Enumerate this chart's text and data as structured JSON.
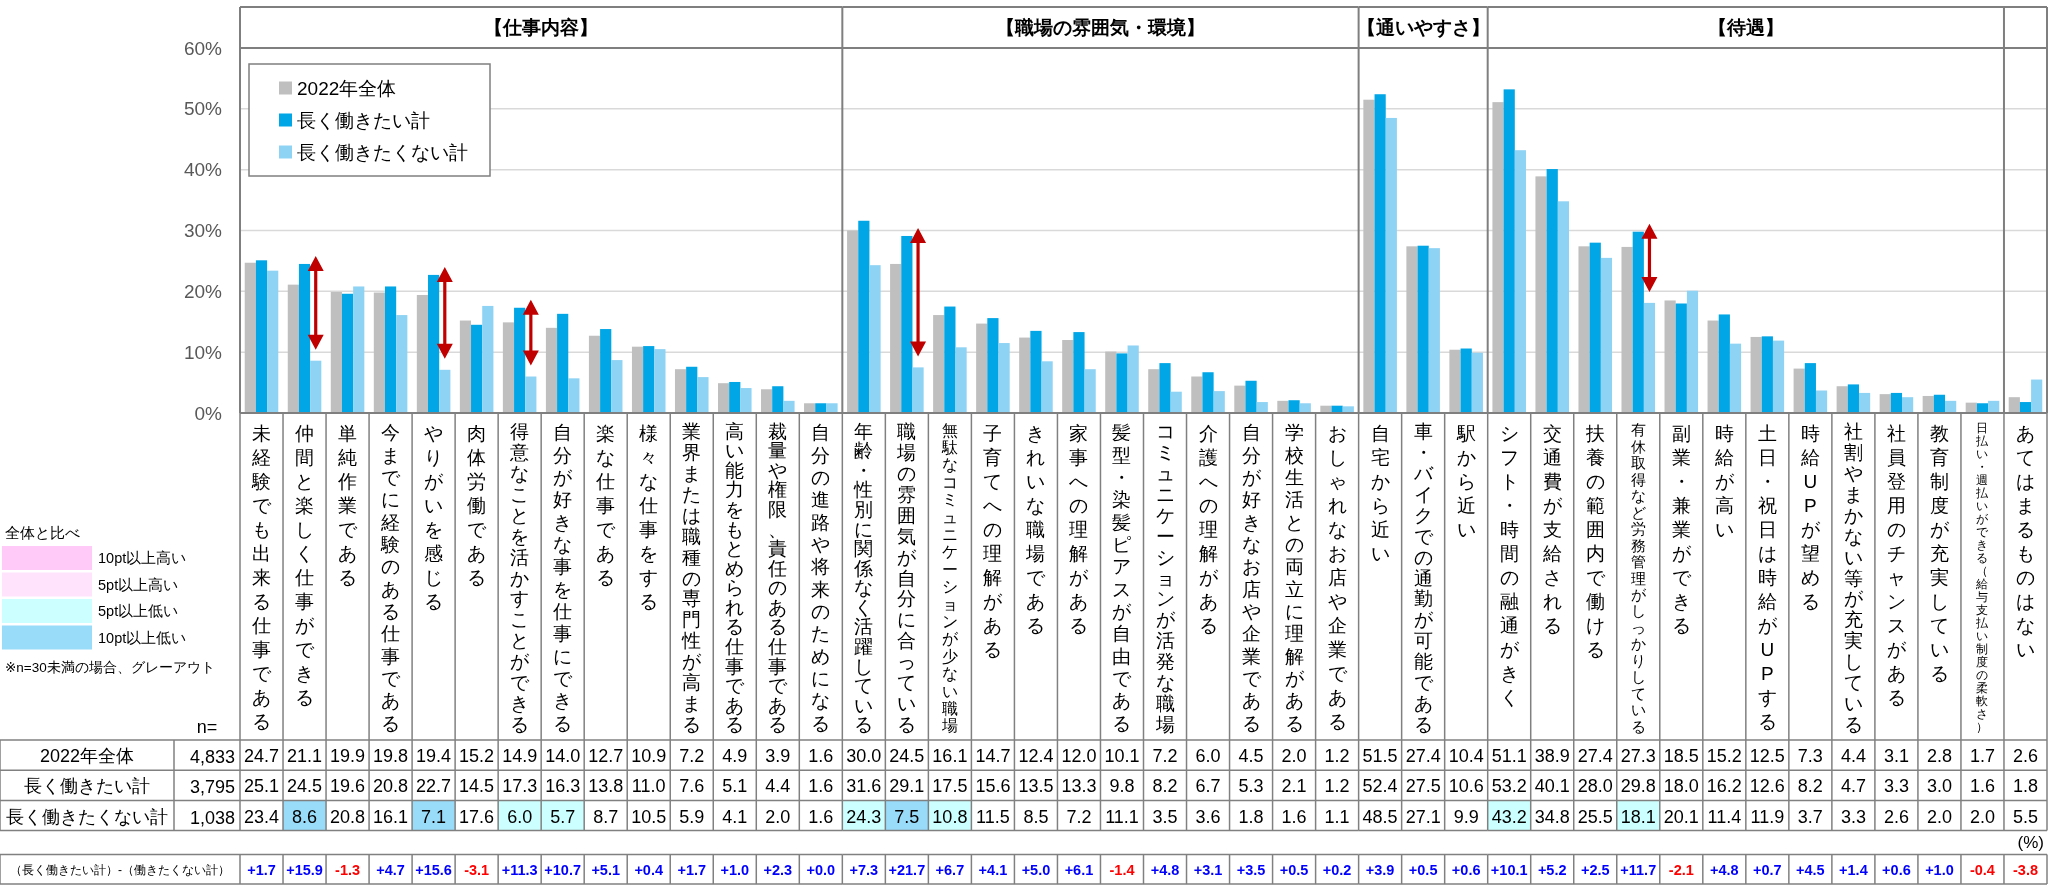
{
  "chart_data": [
    {
      "type": "bar",
      "title": "【仕事内容】",
      "categories": [
        "未経験でも出来る仕事である",
        "仲間と楽しく仕事ができる",
        "単純作業である",
        "今までに経験のある仕事である",
        "やりがいを感じる",
        "肉体労働である",
        "得意なことを活かすことができる",
        "自分が好きな事を仕事にできる",
        "楽な仕事である",
        "様々な仕事をする",
        "業界または職種の専門性が高まる",
        "高い能力をもとめられる仕事である",
        "裁量や権限、責任のある仕事である",
        "自分の進路や将来のためになる"
      ],
      "series": [
        {
          "name": "2022年全体",
          "color": "#bfbfbf",
          "values": [
            24.7,
            21.1,
            19.9,
            19.8,
            19.4,
            15.2,
            14.9,
            14.0,
            12.7,
            10.9,
            7.2,
            4.9,
            3.9,
            1.6
          ],
          "value_labels": [
            "24.7",
            "21.1",
            "19.9",
            "19.8",
            "19.4",
            "15.2",
            "14.9",
            "14.0",
            "12.7",
            "10.9",
            "7.2",
            "4.9",
            "3.9",
            "1.6"
          ]
        },
        {
          "name": "長く働きたい計",
          "color": "#00a6e6",
          "values": [
            25.1,
            24.5,
            19.6,
            20.8,
            22.7,
            14.5,
            17.3,
            16.3,
            13.8,
            11.0,
            7.6,
            5.1,
            4.4,
            1.6
          ],
          "value_labels": [
            "25.1",
            "24.5",
            "19.6",
            "20.8",
            "22.7",
            "14.5",
            "17.3",
            "16.3",
            "13.8",
            "11.0",
            "7.6",
            "5.1",
            "4.4",
            "1.6"
          ]
        },
        {
          "name": "長く働きたくない計",
          "color": "#8fd3f4",
          "values": [
            23.4,
            8.6,
            20.8,
            16.1,
            7.1,
            17.6,
            6.0,
            5.7,
            8.7,
            10.5,
            5.9,
            4.1,
            2.0,
            1.6
          ],
          "value_labels": [
            "23.4",
            "8.6",
            "20.8",
            "16.1",
            "7.1",
            "17.6",
            "6.0",
            "5.7",
            "8.7",
            "10.5",
            "5.9",
            "4.1",
            "2.0",
            "1.6"
          ]
        }
      ],
      "ylim": [
        0,
        60
      ],
      "yticks": [
        {
          "value": 0,
          "label": "0%"
        },
        {
          "value": 10,
          "label": "10%"
        },
        {
          "value": 20,
          "label": "20%"
        },
        {
          "value": 30,
          "label": "30%"
        },
        {
          "value": 40,
          "label": "40%"
        },
        {
          "value": 50,
          "label": "50%"
        },
        {
          "value": 60,
          "label": "60%"
        }
      ],
      "grid": "y",
      "legend": "top left",
      "annotations": [
        "+1.7",
        "+15.9",
        "-1.3",
        "+4.7",
        "+15.6",
        "-3.1",
        "+11.3",
        "+10.7",
        "+5.1",
        "+0.4",
        "+1.7",
        "+1.0",
        "+2.3",
        "+0.0",
        "（長く働きたい計）-（働きたくない計）",
        "n=",
        "4,833",
        "3,795",
        "1,038"
      ]
    },
    {
      "type": "bar",
      "title": "【職場の雰囲気・環境】",
      "categories": [
        "年齢・性別に関係なく活躍している",
        "職場の雰囲気が自分に合っている",
        "無駄なコミュニケーションが少ない職場",
        "子育てへの理解がある",
        "きれいな職場である",
        "家事への理解がある",
        "髪型・染髪ピアスが自由である",
        "コミュニケーションが活発な職場",
        "介護への理解がある",
        "自分が好きなお店や企業である",
        "学校生活との両立に理解がある",
        "おしゃれなお店や企業である"
      ],
      "series": [
        {
          "color": "#bfbfbf",
          "values": [
            30.0,
            24.5,
            16.1,
            14.7,
            12.4,
            12.0,
            10.1,
            7.2,
            6.0,
            4.5,
            2.0,
            1.2
          ],
          "value_labels": [
            "30.0",
            "24.5",
            "16.1",
            "14.7",
            "12.4",
            "12.0",
            "10.1",
            "7.2",
            "6.0",
            "4.5",
            "2.0",
            "1.2"
          ]
        },
        {
          "color": "#00a6e6",
          "values": [
            31.6,
            29.1,
            17.5,
            15.6,
            13.5,
            13.3,
            9.8,
            8.2,
            6.7,
            5.3,
            2.1,
            1.2
          ],
          "value_labels": [
            "31.6",
            "29.1",
            "17.5",
            "15.6",
            "13.5",
            "13.3",
            "9.8",
            "8.2",
            "6.7",
            "5.3",
            "2.1",
            "1.2"
          ]
        },
        {
          "color": "#8fd3f4",
          "values": [
            24.3,
            7.5,
            10.8,
            11.5,
            8.5,
            7.2,
            11.1,
            3.5,
            3.6,
            1.8,
            1.6,
            1.1
          ],
          "value_labels": [
            "24.3",
            "7.5",
            "10.8",
            "11.5",
            "8.5",
            "7.2",
            "11.1",
            "3.5",
            "3.6",
            "1.8",
            "1.6",
            "1.1"
          ]
        }
      ],
      "ylim": [
        0,
        60
      ],
      "yticks": [
        {
          "value": 0,
          "label": null
        },
        {
          "value": 10,
          "label": null
        },
        {
          "value": 20,
          "label": null
        },
        {
          "value": 30,
          "label": null
        },
        {
          "value": 40,
          "label": null
        },
        {
          "value": 50,
          "label": null
        },
        {
          "value": 60,
          "label": null
        }
      ],
      "grid": "y",
      "tick_labels": "x",
      "annotations": [
        "+7.3",
        "+21.7",
        "+6.7",
        "+4.1",
        "+5.0",
        "+6.1",
        "-1.4",
        "+4.8",
        "+3.1",
        "+3.5",
        "+0.5",
        "+0.2"
      ]
    },
    {
      "type": "bar",
      "title": "【通いやすさ】",
      "categories": [
        "自宅から近い",
        "車・バイクでの通勤が可能である",
        "駅から近い"
      ],
      "series": [
        {
          "color": "#bfbfbf",
          "values": [
            51.5,
            27.4,
            10.4
          ],
          "value_labels": [
            "51.5",
            "27.4",
            "10.4"
          ]
        },
        {
          "color": "#00a6e6",
          "values": [
            52.4,
            27.5,
            10.6
          ],
          "value_labels": [
            "52.4",
            "27.5",
            "10.6"
          ]
        },
        {
          "color": "#8fd3f4",
          "values": [
            48.5,
            27.1,
            9.9
          ],
          "value_labels": [
            "48.5",
            "27.1",
            "9.9"
          ]
        }
      ],
      "ylim": [
        0,
        60
      ],
      "yticks": [
        {
          "value": 0,
          "label": null
        },
        {
          "value": 10,
          "label": null
        },
        {
          "value": 20,
          "label": null
        },
        {
          "value": 30,
          "label": null
        },
        {
          "value": 40,
          "label": null
        },
        {
          "value": 50,
          "label": null
        },
        {
          "value": 60,
          "label": null
        }
      ],
      "grid": "y",
      "tick_labels": "x",
      "annotations": [
        "+3.9",
        "+0.5",
        "+0.6"
      ]
    },
    {
      "type": "bar",
      "title": "【待遇】",
      "categories": [
        "シフト・時間の融通がきく",
        "交通費が支給される",
        "扶養の範囲内で働ける",
        "有休取得など労務管理がしっかりしている",
        "副業・兼業ができる",
        "時給が高い",
        "土日・祝日は時給がUPする",
        "時給UPが望める",
        "社割やまかない等が充実している",
        "社員登用のチャンスがある",
        "教育制度が充実している",
        "日払い・週払いができる（給与支払い制度の柔軟さ）"
      ],
      "series": [
        {
          "color": "#bfbfbf",
          "values": [
            51.1,
            38.9,
            27.4,
            27.3,
            18.5,
            15.2,
            12.5,
            7.3,
            4.4,
            3.1,
            2.8,
            1.7
          ],
          "value_labels": [
            "51.1",
            "38.9",
            "27.4",
            "27.3",
            "18.5",
            "15.2",
            "12.5",
            "7.3",
            "4.4",
            "3.1",
            "2.8",
            "1.7"
          ]
        },
        {
          "color": "#00a6e6",
          "values": [
            53.2,
            40.1,
            28.0,
            29.8,
            18.0,
            16.2,
            12.6,
            8.2,
            4.7,
            3.3,
            3.0,
            1.6
          ],
          "value_labels": [
            "53.2",
            "40.1",
            "28.0",
            "29.8",
            "18.0",
            "16.2",
            "12.6",
            "8.2",
            "4.7",
            "3.3",
            "3.0",
            "1.6"
          ]
        },
        {
          "color": "#8fd3f4",
          "values": [
            43.2,
            34.8,
            25.5,
            18.1,
            20.1,
            11.4,
            11.9,
            3.7,
            3.3,
            2.6,
            2.0,
            2.0
          ],
          "value_labels": [
            "43.2",
            "34.8",
            "25.5",
            "18.1",
            "20.1",
            "11.4",
            "11.9",
            "3.7",
            "3.3",
            "2.6",
            "2.0",
            "2.0"
          ]
        }
      ],
      "ylim": [
        0,
        60
      ],
      "yticks": [
        {
          "value": 0,
          "label": null
        },
        {
          "value": 10,
          "label": null
        },
        {
          "value": 20,
          "label": null
        },
        {
          "value": 30,
          "label": null
        },
        {
          "value": 40,
          "label": null
        },
        {
          "value": 50,
          "label": null
        },
        {
          "value": 60,
          "label": null
        }
      ],
      "grid": "y",
      "tick_labels": "x",
      "annotations": [
        "+10.1",
        "+5.2",
        "+2.5",
        "+11.7",
        "-2.1",
        "+4.8",
        "+0.7",
        "+4.5",
        "+1.4",
        "+0.6",
        "+1.0",
        "-0.4"
      ]
    },
    {
      "type": "bar",
      "categories": [
        "あてはまるものはない"
      ],
      "series": [
        {
          "color": "#bfbfbf",
          "values": [
            2.6
          ]
        },
        {
          "color": "#00a6e6",
          "values": [
            1.8
          ]
        },
        {
          "color": "#8fd3f4",
          "values": [
            5.5
          ]
        }
      ],
      "ylim": [
        0,
        60
      ],
      "yticks": [
        {
          "value": 0,
          "label": null
        },
        {
          "value": 10,
          "label": null
        },
        {
          "value": 20,
          "label": null
        },
        {
          "value": 30,
          "label": null
        },
        {
          "value": 40,
          "label": null
        },
        {
          "value": 50,
          "label": null
        },
        {
          "value": 60,
          "label": null
        }
      ],
      "grid": "y",
      "tick_labels": "x",
      "annotations": [
        "-3.8",
        "2.6",
        "1.8",
        "5.5",
        "(%)"
      ]
    },
    {
      "type": "other",
      "title": "全体と比べ",
      "categories": [
        "10pt以上高い",
        "5pt以上高い",
        "5pt以上低い",
        "10pt以上低い"
      ],
      "colors": [
        "#ffc9f8",
        "#ffe3fd",
        "#ccffff",
        "#99dcfa"
      ],
      "annotations": [
        "※n=30未満の場合、グレーアウト"
      ]
    }
  ]
}
